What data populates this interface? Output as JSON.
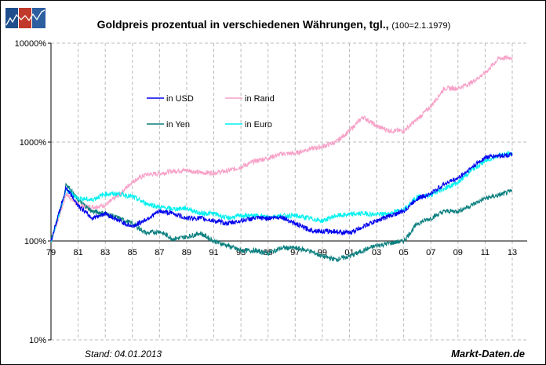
{
  "title": "Goldpreis prozentual in verschiedenen Währungen, tgl.,",
  "subtitle": "(100=2.1.1979)",
  "stand": "Stand: 04.01.2013",
  "brand": "Markt-Daten.de",
  "logo": {
    "colors": [
      "#1f4e8c",
      "#c0392b",
      "#2d5fa0"
    ]
  },
  "chart_data": {
    "type": "line",
    "yscale": "log",
    "ylim": [
      10,
      10000
    ],
    "xlim": [
      1979,
      2014.1
    ],
    "yticks": [
      {
        "v": 10000,
        "label": "10000%"
      },
      {
        "v": 1000,
        "label": "1000%"
      },
      {
        "v": 100,
        "label": "100%"
      },
      {
        "v": 10,
        "label": "10%"
      }
    ],
    "xticks": [
      {
        "v": 1979,
        "label": "79"
      },
      {
        "v": 1981,
        "label": "81"
      },
      {
        "v": 1983,
        "label": "83"
      },
      {
        "v": 1985,
        "label": "85"
      },
      {
        "v": 1987,
        "label": "87"
      },
      {
        "v": 1989,
        "label": "89"
      },
      {
        "v": 1991,
        "label": "91"
      },
      {
        "v": 1993,
        "label": "93"
      },
      {
        "v": 1995,
        "label": "95"
      },
      {
        "v": 1997,
        "label": "97"
      },
      {
        "v": 1999,
        "label": "99"
      },
      {
        "v": 2001,
        "label": "01"
      },
      {
        "v": 2003,
        "label": "03"
      },
      {
        "v": 2005,
        "label": "05"
      },
      {
        "v": 2007,
        "label": "07"
      },
      {
        "v": 2009,
        "label": "09"
      },
      {
        "v": 2011,
        "label": "11"
      },
      {
        "v": 2013,
        "label": "13"
      }
    ],
    "grid": true,
    "legend_position": "upper-left-inside",
    "x": [
      1979,
      1980,
      1980.1,
      1981,
      1982,
      1983,
      1984,
      1985,
      1986,
      1987,
      1988,
      1989,
      1990,
      1991,
      1992,
      1993,
      1994,
      1995,
      1996,
      1997,
      1998,
      1999,
      2000,
      2001,
      2002,
      2003,
      2004,
      2005,
      2006,
      2007,
      2008,
      2009,
      2010,
      2011,
      2012,
      2013
    ],
    "series": [
      {
        "name": "in Rand",
        "color": "#f7a1c8",
        "values": [
          100,
          260,
          300,
          230,
          220,
          230,
          290,
          400,
          470,
          480,
          510,
          520,
          490,
          490,
          510,
          560,
          640,
          690,
          760,
          770,
          850,
          900,
          1000,
          1300,
          1800,
          1450,
          1300,
          1300,
          1700,
          2300,
          3500,
          3500,
          4000,
          5000,
          7000,
          7200
        ]
      },
      {
        "name": "in Yen",
        "color": "#0b7f7f",
        "values": [
          100,
          300,
          380,
          260,
          200,
          190,
          170,
          150,
          120,
          125,
          105,
          110,
          120,
          100,
          90,
          80,
          80,
          75,
          85,
          85,
          80,
          70,
          65,
          70,
          80,
          90,
          95,
          100,
          150,
          170,
          200,
          200,
          230,
          270,
          290,
          320
        ]
      },
      {
        "name": "in Euro",
        "color": "#00f0f0",
        "values": [
          100,
          290,
          330,
          270,
          260,
          300,
          300,
          280,
          240,
          220,
          210,
          215,
          190,
          190,
          170,
          180,
          180,
          175,
          180,
          180,
          170,
          160,
          180,
          185,
          190,
          185,
          190,
          210,
          280,
          290,
          340,
          390,
          520,
          640,
          740,
          760
        ]
      },
      {
        "name": "in USD",
        "color": "#0000ee",
        "values": [
          100,
          300,
          350,
          230,
          170,
          190,
          160,
          140,
          165,
          200,
          190,
          170,
          170,
          160,
          150,
          160,
          170,
          170,
          175,
          150,
          130,
          125,
          125,
          120,
          140,
          160,
          180,
          200,
          270,
          300,
          380,
          430,
          550,
          700,
          730,
          740
        ]
      }
    ],
    "legend": [
      {
        "name": "in USD",
        "color": "#0000ee"
      },
      {
        "name": "in Rand",
        "color": "#f7a1c8"
      },
      {
        "name": "in Yen",
        "color": "#0b7f7f"
      },
      {
        "name": "in Euro",
        "color": "#00f0f0"
      }
    ]
  }
}
